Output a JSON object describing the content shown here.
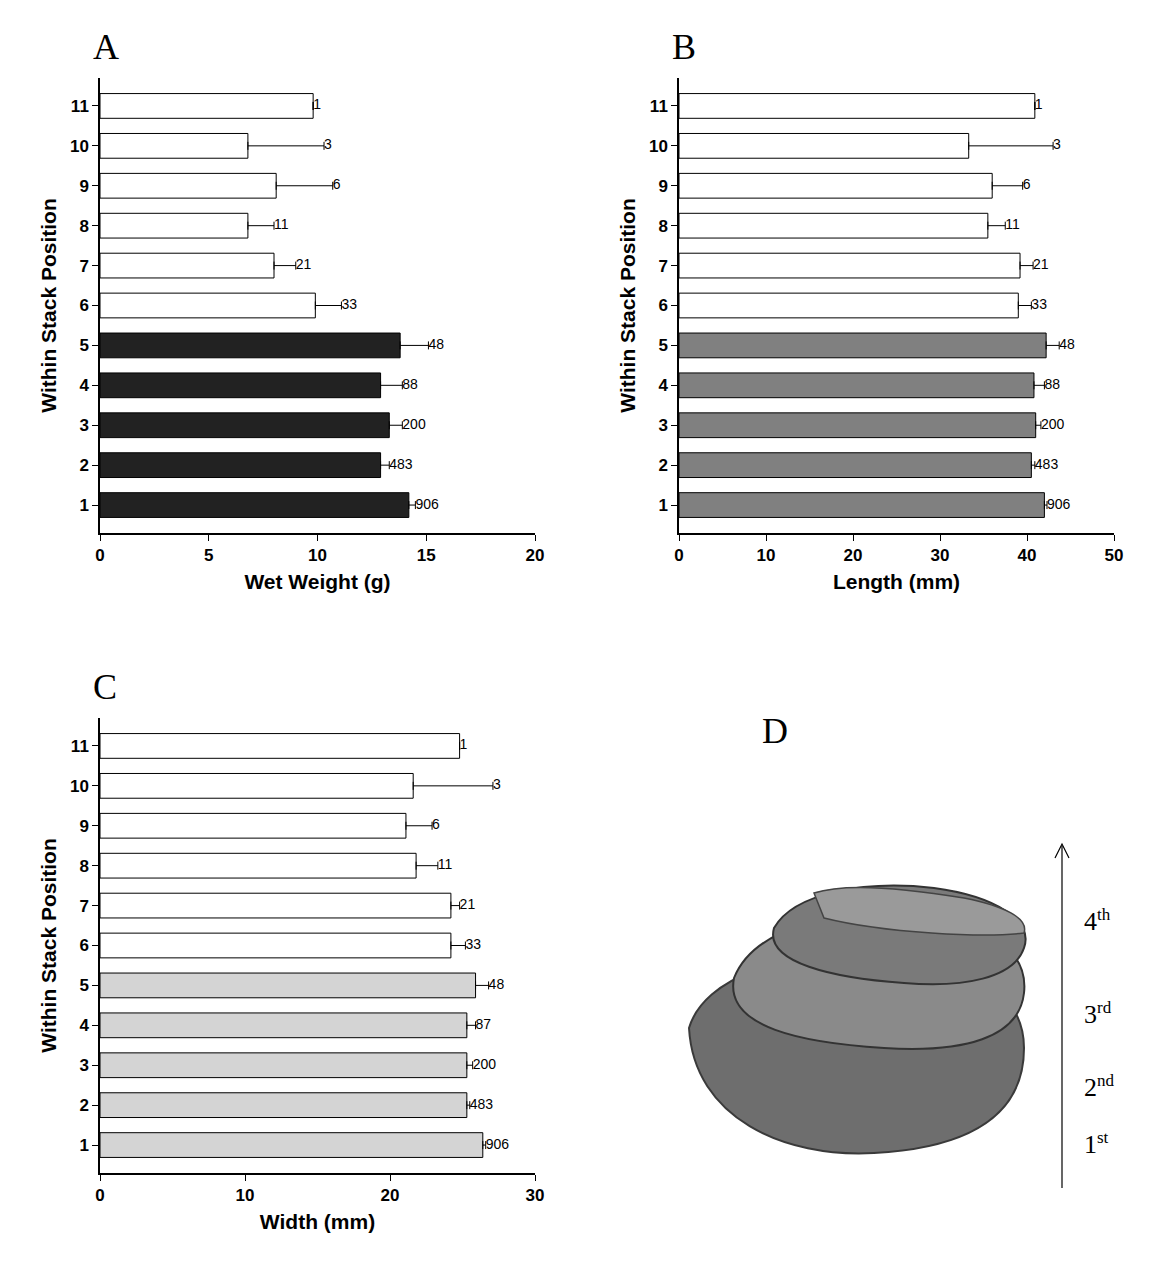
{
  "chart_data": [
    {
      "panel": "A",
      "type": "bar",
      "orientation": "horizontal",
      "xlabel": "Wet Weight (g)",
      "ylabel": "Within Stack Position",
      "categories": [
        "1",
        "2",
        "3",
        "4",
        "5",
        "6",
        "7",
        "8",
        "9",
        "10",
        "11"
      ],
      "values": [
        14.2,
        12.9,
        13.3,
        12.9,
        13.8,
        9.9,
        8.0,
        6.8,
        8.1,
        6.8,
        9.8
      ],
      "errors": [
        0.3,
        0.4,
        0.6,
        1.0,
        1.3,
        1.2,
        1.0,
        1.2,
        2.6,
        3.5,
        0
      ],
      "counts": [
        906,
        483,
        200,
        88,
        48,
        33,
        21,
        11,
        6,
        3,
        1
      ],
      "colors": [
        "#222222",
        "#222222",
        "#222222",
        "#222222",
        "#222222",
        "#ffffff",
        "#ffffff",
        "#ffffff",
        "#ffffff",
        "#ffffff",
        "#ffffff"
      ],
      "xlim": [
        0,
        20
      ],
      "xticks": [
        0,
        5,
        10,
        15,
        20
      ],
      "grid": false
    },
    {
      "panel": "B",
      "type": "bar",
      "orientation": "horizontal",
      "xlabel": "Length (mm)",
      "ylabel": "Within Stack Position",
      "categories": [
        "1",
        "2",
        "3",
        "4",
        "5",
        "6",
        "7",
        "8",
        "9",
        "10",
        "11"
      ],
      "values": [
        42.0,
        40.5,
        41.0,
        40.8,
        42.2,
        39.0,
        39.2,
        35.5,
        36.0,
        33.3,
        40.9
      ],
      "errors": [
        0.3,
        0.4,
        0.6,
        1.2,
        1.5,
        1.5,
        1.5,
        2.0,
        3.5,
        9.7,
        0
      ],
      "counts": [
        906,
        483,
        200,
        88,
        48,
        33,
        21,
        11,
        6,
        3,
        1
      ],
      "colors": [
        "#808080",
        "#808080",
        "#808080",
        "#808080",
        "#808080",
        "#ffffff",
        "#ffffff",
        "#ffffff",
        "#ffffff",
        "#ffffff",
        "#ffffff"
      ],
      "xlim": [
        0,
        50
      ],
      "xticks": [
        0,
        10,
        20,
        30,
        40,
        50
      ],
      "grid": false
    },
    {
      "panel": "C",
      "type": "bar",
      "orientation": "horizontal",
      "xlabel": "Width (mm)",
      "ylabel": "Within Stack Position",
      "categories": [
        "1",
        "2",
        "3",
        "4",
        "5",
        "6",
        "7",
        "8",
        "9",
        "10",
        "11"
      ],
      "values": [
        26.4,
        25.3,
        25.3,
        25.3,
        25.9,
        24.2,
        24.2,
        21.8,
        21.1,
        21.6,
        24.8
      ],
      "errors": [
        0.2,
        0.2,
        0.4,
        0.6,
        0.9,
        1.0,
        0.6,
        1.5,
        1.8,
        5.5,
        0
      ],
      "counts": [
        906,
        483,
        200,
        87,
        48,
        33,
        21,
        11,
        6,
        3,
        1
      ],
      "colors": [
        "#d4d4d4",
        "#d4d4d4",
        "#d4d4d4",
        "#d4d4d4",
        "#d4d4d4",
        "#ffffff",
        "#ffffff",
        "#ffffff",
        "#ffffff",
        "#ffffff",
        "#ffffff"
      ],
      "xlim": [
        0,
        30
      ],
      "xticks": [
        0,
        10,
        20,
        30
      ],
      "grid": false
    }
  ],
  "panel_d": {
    "panel": "D",
    "axis_labels": [
      "1st",
      "2nd",
      "3rd",
      "4th"
    ]
  }
}
